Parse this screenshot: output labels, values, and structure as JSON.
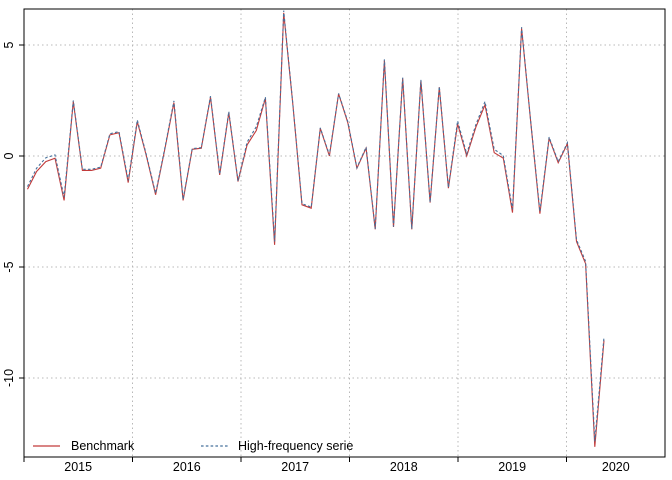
{
  "chart_data": {
    "type": "line",
    "title": "",
    "xlabel": "",
    "ylabel": "",
    "grid": "dotted",
    "legend_position": "bottom-left-inside",
    "x_axis": {
      "tick_labels": [
        "2015",
        "2016",
        "2017",
        "2018",
        "2019",
        "2020"
      ],
      "unit": "monthly, Jan 2015 - Apr 2020"
    },
    "y_axis": {
      "ticks": [
        5,
        0,
        -5,
        -10
      ],
      "tick_labels": [
        "5",
        "0",
        "-5",
        "-10"
      ],
      "ylim": [
        -13.5,
        6.7
      ]
    },
    "months": [
      "2015-01",
      "2015-02",
      "2015-03",
      "2015-04",
      "2015-05",
      "2015-06",
      "2015-07",
      "2015-08",
      "2015-09",
      "2015-10",
      "2015-11",
      "2015-12",
      "2016-01",
      "2016-02",
      "2016-03",
      "2016-04",
      "2016-05",
      "2016-06",
      "2016-07",
      "2016-08",
      "2016-09",
      "2016-10",
      "2016-11",
      "2016-12",
      "2017-01",
      "2017-02",
      "2017-03",
      "2017-04",
      "2017-05",
      "2017-06",
      "2017-07",
      "2017-08",
      "2017-09",
      "2017-10",
      "2017-11",
      "2017-12",
      "2018-01",
      "2018-02",
      "2018-03",
      "2018-04",
      "2018-05",
      "2018-06",
      "2018-07",
      "2018-08",
      "2018-09",
      "2018-10",
      "2018-11",
      "2018-12",
      "2019-01",
      "2019-02",
      "2019-03",
      "2019-04",
      "2019-05",
      "2019-06",
      "2019-07",
      "2019-08",
      "2019-09",
      "2019-10",
      "2019-11",
      "2019-12",
      "2020-01",
      "2020-02",
      "2020-03",
      "2020-04"
    ],
    "series": [
      {
        "name": "Benchmark",
        "color": "#c23b3b",
        "line_style": "solid",
        "values": [
          -1.5,
          -0.7,
          -0.25,
          -0.1,
          -2.0,
          2.45,
          -0.65,
          -0.65,
          -0.55,
          0.95,
          1.05,
          -1.2,
          1.55,
          0.0,
          -1.75,
          0.3,
          2.4,
          -2.0,
          0.3,
          0.35,
          2.65,
          -0.85,
          1.95,
          -1.15,
          0.5,
          1.15,
          2.6,
          -4.0,
          6.45,
          2.3,
          -2.2,
          -2.35,
          1.25,
          0.0,
          2.8,
          1.5,
          -0.55,
          0.35,
          -3.3,
          4.3,
          -3.2,
          3.5,
          -3.3,
          3.4,
          -2.1,
          3.1,
          -1.45,
          1.45,
          0.0,
          1.3,
          2.3,
          0.15,
          -0.1,
          -2.55,
          5.75,
          1.5,
          -2.6,
          0.8,
          -0.3,
          0.55,
          -3.85,
          -4.85,
          -13.1,
          -8.3
        ]
      },
      {
        "name": "High-frequency serie",
        "color": "#46719c",
        "line_style": "dashed",
        "values": [
          -1.38,
          -0.55,
          -0.08,
          0.05,
          -1.85,
          2.5,
          -0.6,
          -0.6,
          -0.5,
          1.0,
          1.1,
          -1.1,
          1.62,
          0.05,
          -1.68,
          0.35,
          2.48,
          -1.95,
          0.33,
          0.38,
          2.7,
          -0.82,
          2.0,
          -1.12,
          0.62,
          1.32,
          2.65,
          -3.85,
          6.55,
          2.32,
          -2.15,
          -2.3,
          1.27,
          0.05,
          2.82,
          1.55,
          -0.53,
          0.4,
          -3.28,
          4.35,
          -3.18,
          3.53,
          -3.28,
          3.43,
          -2.08,
          3.13,
          -1.42,
          1.58,
          0.1,
          1.42,
          2.45,
          0.3,
          0.02,
          -2.4,
          5.8,
          1.52,
          -2.5,
          0.85,
          -0.25,
          0.6,
          -3.77,
          -4.75,
          -12.85,
          -8.15
        ]
      }
    ]
  },
  "colors": {
    "benchmark_line": "#c23b3b",
    "high_frequency_line": "#46719c",
    "grid_line": "#b8b8b8",
    "axis": "#000000",
    "background": "#ffffff"
  },
  "legend": {
    "items": [
      {
        "label": "Benchmark"
      },
      {
        "label": "High-frequency serie"
      }
    ]
  }
}
